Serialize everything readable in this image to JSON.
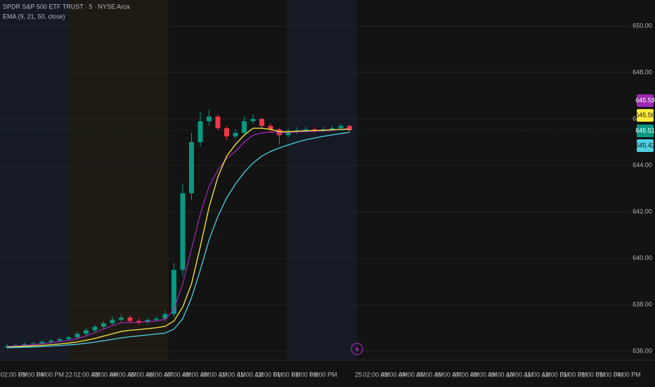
{
  "chart_data": {
    "type": "candlestick",
    "title": "SPDR S&P 500 ETF TRUST · 5 · NYSE Arca",
    "indicator": "EMA (9, 21, 50, close)",
    "time_labels": [
      "02:00 PM",
      "03:00 PM",
      "04:00 PM",
      "22",
      "02:00 AM",
      "03:00 AM",
      "04:00 AM",
      "05:00 AM",
      "06:00 AM",
      "07:00 AM",
      "08:00 AM",
      "09:00 AM",
      "10:00 AM",
      "11:00 AM",
      "12:00 PM",
      "01:00 PM",
      "02:00 PM",
      "03:00 PM",
      "25",
      "02:00 AM",
      "03:00 AM",
      "04:00 AM",
      "05:00 AM",
      "06:00 AM",
      "07:00 AM",
      "08:00 AM",
      "09:00 AM",
      "10:00 AM",
      "11:00 AM",
      "12:00 PM",
      "01:00 PM",
      "02:00 PM",
      "03:00 PM",
      "04:00 PM"
    ],
    "open": [
      636.18,
      636.22,
      636.25,
      636.3,
      636.33,
      636.4,
      636.45,
      636.52,
      636.6,
      636.75,
      636.9,
      637.05,
      637.2,
      637.35,
      637.45,
      637.3,
      637.25,
      637.35,
      637.4,
      637.6,
      639.5,
      642.8,
      645.0,
      645.9,
      646.1,
      645.6,
      645.25,
      645.4,
      645.9,
      646.0,
      645.7,
      645.55,
      645.3,
      645.45,
      645.5,
      645.55,
      645.5,
      645.55,
      645.6,
      645.7
    ],
    "high": [
      636.3,
      636.32,
      636.38,
      636.4,
      636.48,
      636.52,
      636.6,
      636.68,
      636.85,
      637.0,
      637.15,
      637.3,
      637.5,
      637.6,
      637.55,
      637.4,
      637.45,
      637.5,
      637.75,
      639.8,
      643.2,
      645.4,
      646.3,
      646.4,
      646.2,
      645.7,
      645.55,
      646.1,
      646.2,
      646.05,
      645.8,
      645.6,
      645.6,
      645.65,
      645.68,
      645.65,
      645.66,
      645.7,
      645.8,
      645.75
    ],
    "low": [
      636.1,
      636.15,
      636.18,
      636.22,
      636.25,
      636.32,
      636.38,
      636.45,
      636.5,
      636.68,
      636.82,
      636.95,
      637.1,
      637.25,
      637.2,
      637.15,
      637.15,
      637.28,
      637.3,
      637.45,
      639.2,
      642.5,
      644.8,
      645.7,
      645.5,
      645.1,
      645.15,
      645.3,
      645.8,
      645.6,
      645.4,
      644.9,
      645.2,
      645.35,
      645.42,
      645.4,
      645.42,
      645.48,
      645.52,
      645.45
    ],
    "close": [
      636.22,
      636.25,
      636.3,
      636.33,
      636.4,
      636.45,
      636.52,
      636.6,
      636.75,
      636.9,
      637.05,
      637.2,
      637.35,
      637.45,
      637.3,
      637.25,
      637.35,
      637.4,
      637.6,
      639.5,
      642.8,
      645.0,
      645.9,
      646.1,
      645.6,
      645.25,
      645.4,
      645.9,
      646.0,
      645.7,
      645.55,
      645.3,
      645.45,
      645.5,
      645.55,
      645.5,
      645.55,
      645.6,
      645.7,
      645.51
    ],
    "up_color": "#089981",
    "down_color": "#f23645",
    "series": [
      {
        "color": "#9c27b0",
        "values": [
          636.2,
          636.22,
          636.25,
          636.28,
          636.32,
          636.36,
          636.41,
          636.46,
          636.55,
          636.66,
          636.8,
          636.95,
          637.1,
          637.22,
          637.24,
          637.24,
          637.27,
          637.3,
          637.37,
          637.8,
          638.9,
          640.4,
          641.9,
          643.1,
          643.8,
          644.3,
          644.6,
          645.0,
          645.3,
          645.4,
          645.43,
          645.41,
          645.42,
          645.44,
          645.46,
          645.47,
          645.49,
          645.51,
          645.55,
          645.59
        ]
      },
      {
        "color": "#ffeb3b",
        "values": [
          636.18,
          636.19,
          636.21,
          636.23,
          636.25,
          636.28,
          636.31,
          636.35,
          636.4,
          636.47,
          636.55,
          636.65,
          636.75,
          636.85,
          636.9,
          636.93,
          636.97,
          637.01,
          637.07,
          637.3,
          637.9,
          638.9,
          640.5,
          642.2,
          643.5,
          644.4,
          644.9,
          645.3,
          645.6,
          645.6,
          645.55,
          645.45,
          645.45,
          645.47,
          645.49,
          645.5,
          645.51,
          645.53,
          645.55,
          645.56
        ]
      },
      {
        "color": "#4dd0e1",
        "values": [
          636.15,
          636.16,
          636.17,
          636.18,
          636.2,
          636.22,
          636.24,
          636.27,
          636.3,
          636.34,
          636.39,
          636.45,
          636.51,
          636.57,
          636.62,
          636.66,
          636.7,
          636.74,
          636.78,
          636.95,
          637.4,
          638.3,
          639.5,
          640.8,
          641.8,
          642.6,
          643.2,
          643.7,
          644.1,
          644.4,
          644.6,
          644.75,
          644.88,
          645.0,
          645.1,
          645.18,
          645.25,
          645.31,
          645.37,
          645.42
        ]
      }
    ],
    "ylim": [
      635.67,
      651.12
    ],
    "yticks": [
      {
        "value": 636,
        "label": "636.00"
      },
      {
        "value": 638,
        "label": "638.00"
      },
      {
        "value": 640,
        "label": "640.00"
      },
      {
        "value": 642,
        "label": "642.00"
      },
      {
        "value": 644,
        "label": "644.00"
      },
      {
        "value": 646,
        "label": "646.00"
      },
      {
        "value": 648,
        "label": "648.00"
      },
      {
        "value": 650,
        "label": "650.00"
      }
    ],
    "grid": true
  }
}
